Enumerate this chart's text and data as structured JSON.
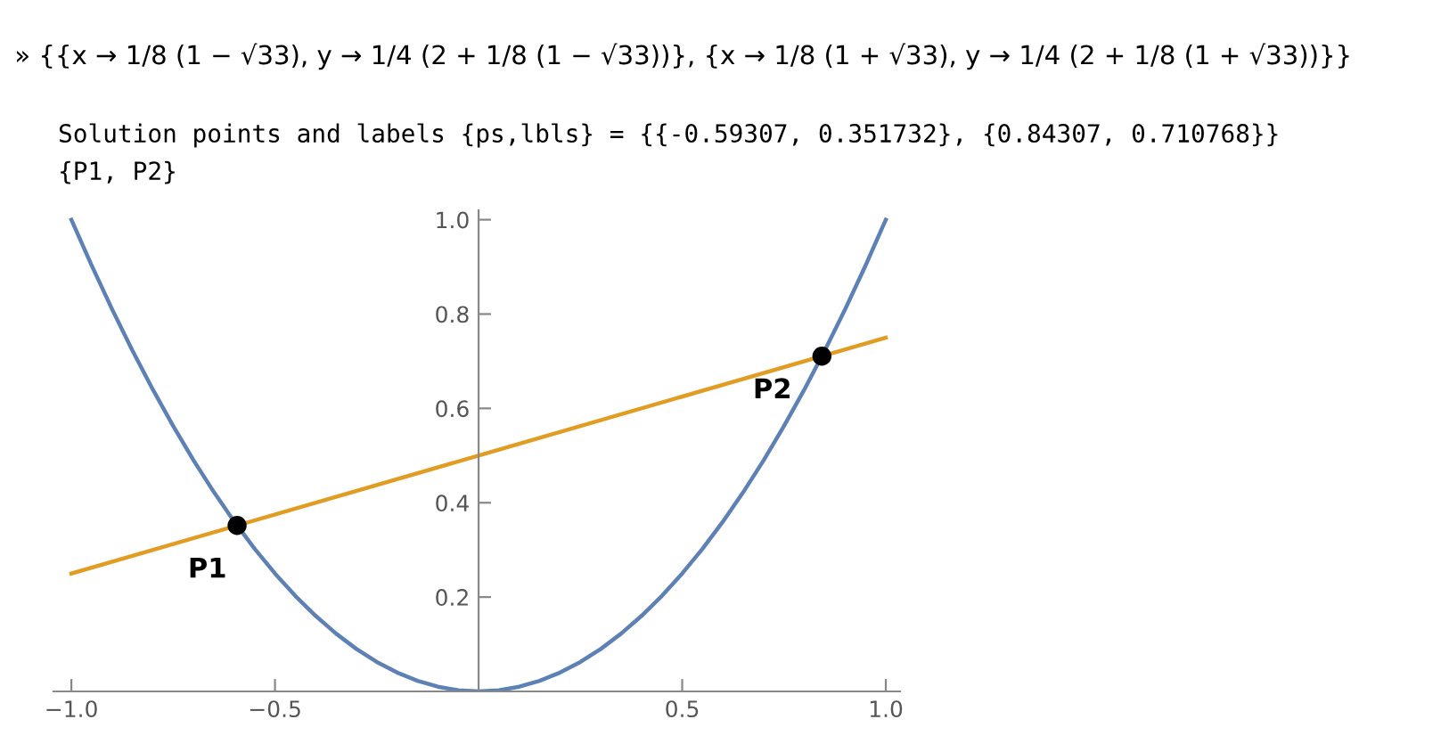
{
  "chart_data": {
    "type": "line",
    "annotations": [
      "» {{x → 1/8 (1 − √33), y → 1/4 (2 + 1/8 (1 − √33))}, {x → 1/8 (1 + √33), y → 1/4 (2 + 1/8 (1 + √33))}}",
      "Solution points and labels {ps,lbls} = {{-0.59307, 0.351732}, {0.84307, 0.710768}}",
      "{P1, P2}",
      {
        "text": "P1",
        "x": -0.59307,
        "y": 0.351732
      },
      {
        "text": "P2",
        "x": 0.84307,
        "y": 0.710768
      }
    ],
    "series": [
      {
        "color": "#5e81b5",
        "x": [
          -1.0,
          -0.95,
          -0.9,
          -0.85,
          -0.8,
          -0.75,
          -0.7,
          -0.65,
          -0.6,
          -0.55,
          -0.5,
          -0.45,
          -0.4,
          -0.35,
          -0.3,
          -0.25,
          -0.2,
          -0.15,
          -0.1,
          -0.05,
          0.0,
          0.05,
          0.1,
          0.15,
          0.2,
          0.25,
          0.3,
          0.35,
          0.4,
          0.45,
          0.5,
          0.55,
          0.6,
          0.65,
          0.7,
          0.75,
          0.8,
          0.85,
          0.9,
          0.95,
          1.0
        ],
        "values": [
          1.0,
          0.9025,
          0.81,
          0.7225,
          0.64,
          0.5625,
          0.49,
          0.4225,
          0.36,
          0.3025,
          0.25,
          0.2025,
          0.16,
          0.1225,
          0.09,
          0.0625,
          0.04,
          0.0225,
          0.01,
          0.0025,
          0.0,
          0.0025,
          0.01,
          0.0225,
          0.04,
          0.0625,
          0.09,
          0.1225,
          0.16,
          0.2025,
          0.25,
          0.3025,
          0.36,
          0.4225,
          0.49,
          0.5625,
          0.64,
          0.7225,
          0.81,
          0.9025,
          1.0
        ]
      },
      {
        "color": "#e19c24",
        "x": [
          -1.0,
          1.0
        ],
        "values": [
          0.25,
          0.75
        ]
      },
      {
        "type": "scatter",
        "color": "#000000",
        "marker": "circle",
        "x": [
          -0.59307,
          0.84307
        ],
        "values": [
          0.351732,
          0.710768
        ]
      }
    ],
    "xlim": [
      -1.044,
      1.035
    ],
    "ylim": [
      0,
      1.02
    ],
    "xticks": [
      {
        "value": -1.0,
        "label": "−1.0"
      },
      {
        "value": -0.5,
        "label": "−0.5"
      },
      {
        "value": 0.5,
        "label": "0.5"
      },
      {
        "value": 1.0,
        "label": "1.0"
      }
    ],
    "yticks": [
      {
        "value": 0.2,
        "label": "0.2"
      },
      {
        "value": 0.4,
        "label": "0.4"
      },
      {
        "value": 0.6,
        "label": "0.6"
      },
      {
        "value": 0.8,
        "label": "0.8"
      },
      {
        "value": 1.0,
        "label": "1.0"
      }
    ],
    "grid": false,
    "legend": false
  }
}
